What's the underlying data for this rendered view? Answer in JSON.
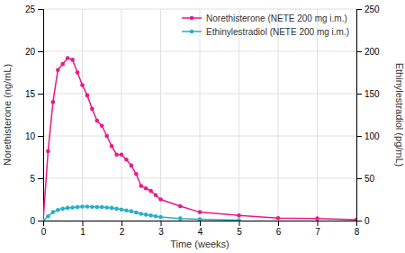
{
  "chart_data": {
    "type": "line",
    "xlabel": "Time (weeks)",
    "ylabel": "Norethisterone (ng/mL)",
    "y2label": "Ethinylestradiol (pg/mL)",
    "xlim": [
      0,
      8
    ],
    "xticks": [
      0,
      1,
      2,
      3,
      4,
      5,
      6,
      7,
      8
    ],
    "ylim": [
      0,
      25
    ],
    "yticks": [
      0,
      5,
      10,
      15,
      20,
      25
    ],
    "y2lim": [
      0,
      250
    ],
    "y2ticks": [
      0,
      50,
      100,
      150,
      200,
      250
    ],
    "grid": true,
    "legend": "upper right",
    "series": [
      {
        "name": "Norethisterone (NETE 200 mg i.m.)",
        "color": "#e8198b",
        "marker": "circle",
        "x": [
          0,
          0.125,
          0.25,
          0.375,
          0.5,
          0.625,
          0.75,
          0.875,
          1.0,
          1.125,
          1.25,
          1.375,
          1.5,
          1.625,
          1.75,
          1.875,
          2.0,
          2.125,
          2.25,
          2.375,
          2.5,
          2.625,
          2.75,
          2.875,
          3.0,
          3.5,
          4.0,
          5.0,
          6.0,
          7.0,
          8.0
        ],
        "values": [
          0,
          8.2,
          14.0,
          17.8,
          18.5,
          19.2,
          19.0,
          17.5,
          16.0,
          14.8,
          13.2,
          11.8,
          11.2,
          10.0,
          8.8,
          7.8,
          7.8,
          7.2,
          6.5,
          5.5,
          4.1,
          3.8,
          3.5,
          3.0,
          2.5,
          1.7,
          1.0,
          0.6,
          0.3,
          0.25,
          0.1
        ]
      },
      {
        "name": "Ethinylestradiol (NETE 200 mg i.m.)",
        "color": "#29aec7",
        "marker": "circle",
        "axis": "y2",
        "x": [
          0,
          0.125,
          0.25,
          0.375,
          0.5,
          0.625,
          0.75,
          0.875,
          1.0,
          1.125,
          1.25,
          1.375,
          1.5,
          1.625,
          1.75,
          1.875,
          2.0,
          2.125,
          2.25,
          2.375,
          2.5,
          2.625,
          2.75,
          2.875,
          3.0,
          3.5,
          4.0,
          5.0
        ],
        "values": [
          0,
          5,
          10,
          12.5,
          14,
          15,
          15.5,
          16,
          16.5,
          16.5,
          16.2,
          16,
          16,
          15.5,
          15,
          14,
          13,
          12,
          11,
          9.5,
          8,
          7,
          6,
          5,
          4.2,
          2.5,
          1.5,
          0.5
        ]
      }
    ]
  }
}
